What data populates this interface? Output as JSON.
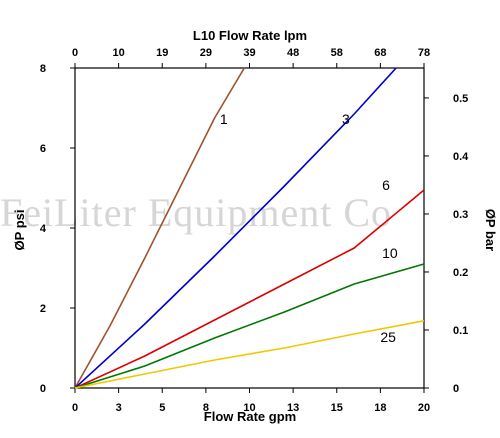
{
  "chart_data": {
    "type": "line",
    "title": "L10 Flow Rate lpm",
    "xlabel": "Flow Rate gpm",
    "ylabel_left": "ØP psi",
    "ylabel_right": "ØP bar",
    "watermark": "FeiLiter Equipment Co",
    "xlim": [
      0,
      20
    ],
    "ylim": [
      0,
      8
    ],
    "y2lim": [
      0,
      0.5516
    ],
    "x_ticks": [
      "0",
      "3",
      "5",
      "8",
      "10",
      "13",
      "15",
      "18",
      "20"
    ],
    "x_tick_values": [
      0,
      2.5,
      5,
      7.5,
      10,
      12.5,
      15,
      17.5,
      20
    ],
    "x2_ticks": [
      "0",
      "10",
      "19",
      "29",
      "39",
      "48",
      "58",
      "68",
      "78"
    ],
    "y_ticks": [
      "0",
      "2",
      "4",
      "6",
      "8"
    ],
    "y_tick_values": [
      0,
      2,
      4,
      6,
      8
    ],
    "y2_ticks": [
      "0",
      "0.1",
      "0.2",
      "0.3",
      "0.4",
      "0.5"
    ],
    "y2_tick_values": [
      0,
      0.1,
      0.2,
      0.3,
      0.4,
      0.5
    ],
    "grid": false,
    "series": [
      {
        "name": "1",
        "color": "#a0522d",
        "x": [
          0,
          2,
          4,
          6,
          8,
          9.7
        ],
        "y": [
          0,
          1.55,
          3.25,
          5.0,
          6.75,
          8.0
        ]
      },
      {
        "name": "3",
        "color": "#0000cc",
        "x": [
          0,
          4,
          8,
          12,
          16,
          18.4
        ],
        "y": [
          0,
          1.6,
          3.3,
          5.05,
          6.85,
          8.0
        ]
      },
      {
        "name": "6",
        "color": "#dd0000",
        "x": [
          0,
          4,
          8,
          12,
          16,
          20
        ],
        "y": [
          0,
          0.8,
          1.7,
          2.6,
          3.5,
          4.95
        ]
      },
      {
        "name": "10",
        "color": "#007700",
        "x": [
          0,
          4,
          8,
          12,
          16,
          20
        ],
        "y": [
          0,
          0.55,
          1.25,
          1.9,
          2.6,
          3.1
        ]
      },
      {
        "name": "25",
        "color": "#f0c800",
        "x": [
          0,
          4,
          8,
          12,
          16,
          20
        ],
        "y": [
          0,
          0.35,
          0.7,
          1.0,
          1.35,
          1.68
        ]
      }
    ]
  }
}
